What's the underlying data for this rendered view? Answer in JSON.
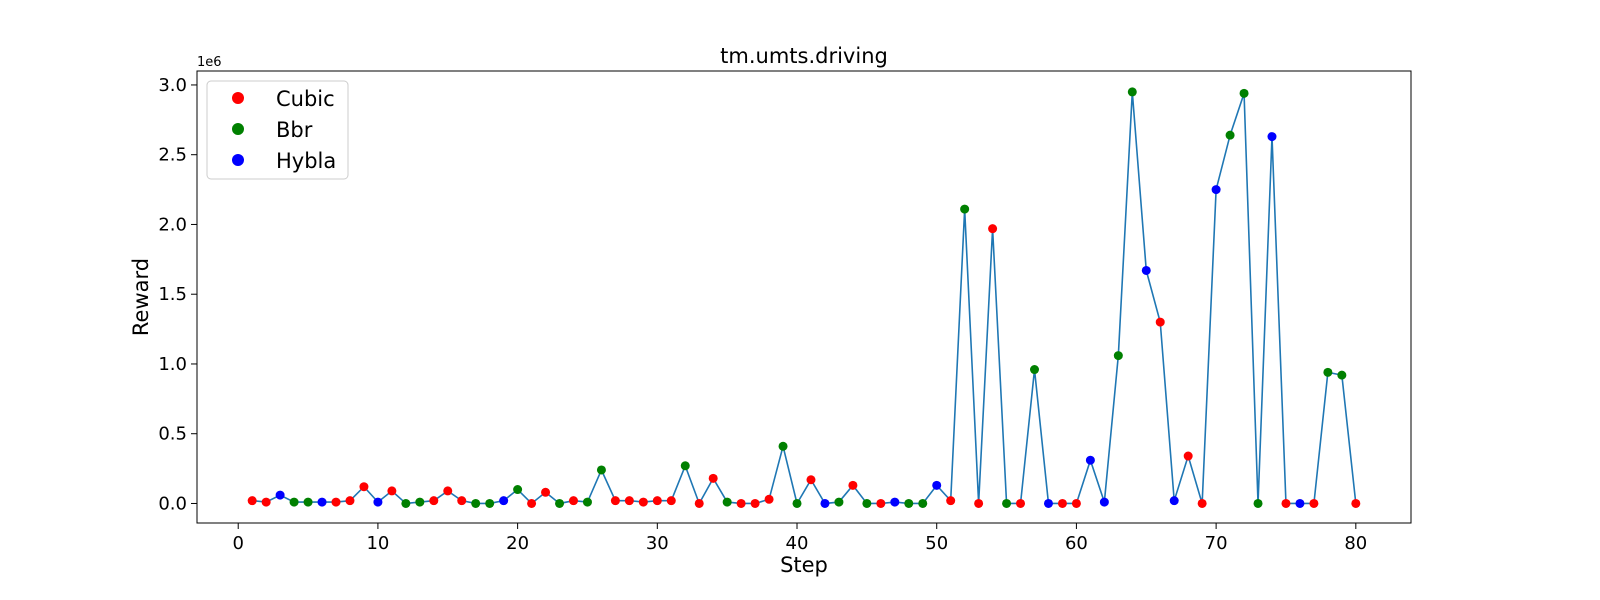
{
  "chart_data": {
    "type": "line",
    "title": "tm.umts.driving",
    "xlabel": "Step",
    "ylabel": "Reward",
    "y_offset_label": "1e6",
    "xlim": [
      -2.95,
      83.95
    ],
    "ylim": [
      -0.14,
      3.1
    ],
    "x_ticks": [
      0,
      10,
      20,
      30,
      40,
      50,
      60,
      70,
      80
    ],
    "y_ticks": [
      0.0,
      0.5,
      1.0,
      1.5,
      2.0,
      2.5,
      3.0
    ],
    "y_tick_labels": [
      "0.0",
      "0.5",
      "1.0",
      "1.5",
      "2.0",
      "2.5",
      "3.0"
    ],
    "y_unit_note": "values in units of 1e6",
    "line_color": "#1f77b4",
    "legend_location": "upper left",
    "legend": [
      {
        "name": "Cubic",
        "color": "#ff0000"
      },
      {
        "name": "Bbr",
        "color": "#008000"
      },
      {
        "name": "Hybla",
        "color": "#0000ff"
      }
    ],
    "points": [
      {
        "x": 1,
        "y": 0.02,
        "algo": "Cubic"
      },
      {
        "x": 2,
        "y": 0.01,
        "algo": "Cubic"
      },
      {
        "x": 3,
        "y": 0.06,
        "algo": "Hybla"
      },
      {
        "x": 4,
        "y": 0.01,
        "algo": "Bbr"
      },
      {
        "x": 5,
        "y": 0.01,
        "algo": "Bbr"
      },
      {
        "x": 6,
        "y": 0.01,
        "algo": "Hybla"
      },
      {
        "x": 7,
        "y": 0.01,
        "algo": "Cubic"
      },
      {
        "x": 8,
        "y": 0.02,
        "algo": "Cubic"
      },
      {
        "x": 9,
        "y": 0.12,
        "algo": "Cubic"
      },
      {
        "x": 10,
        "y": 0.01,
        "algo": "Hybla"
      },
      {
        "x": 11,
        "y": 0.09,
        "algo": "Cubic"
      },
      {
        "x": 12,
        "y": 0.0,
        "algo": "Bbr"
      },
      {
        "x": 13,
        "y": 0.01,
        "algo": "Bbr"
      },
      {
        "x": 14,
        "y": 0.02,
        "algo": "Cubic"
      },
      {
        "x": 15,
        "y": 0.09,
        "algo": "Cubic"
      },
      {
        "x": 16,
        "y": 0.02,
        "algo": "Cubic"
      },
      {
        "x": 17,
        "y": 0.0,
        "algo": "Bbr"
      },
      {
        "x": 18,
        "y": 0.0,
        "algo": "Bbr"
      },
      {
        "x": 19,
        "y": 0.02,
        "algo": "Hybla"
      },
      {
        "x": 20,
        "y": 0.1,
        "algo": "Bbr"
      },
      {
        "x": 21,
        "y": 0.0,
        "algo": "Cubic"
      },
      {
        "x": 22,
        "y": 0.08,
        "algo": "Cubic"
      },
      {
        "x": 23,
        "y": 0.0,
        "algo": "Bbr"
      },
      {
        "x": 24,
        "y": 0.02,
        "algo": "Cubic"
      },
      {
        "x": 25,
        "y": 0.01,
        "algo": "Bbr"
      },
      {
        "x": 26,
        "y": 0.24,
        "algo": "Bbr"
      },
      {
        "x": 27,
        "y": 0.02,
        "algo": "Cubic"
      },
      {
        "x": 28,
        "y": 0.02,
        "algo": "Cubic"
      },
      {
        "x": 29,
        "y": 0.01,
        "algo": "Cubic"
      },
      {
        "x": 30,
        "y": 0.02,
        "algo": "Cubic"
      },
      {
        "x": 31,
        "y": 0.02,
        "algo": "Cubic"
      },
      {
        "x": 32,
        "y": 0.27,
        "algo": "Bbr"
      },
      {
        "x": 33,
        "y": 0.0,
        "algo": "Cubic"
      },
      {
        "x": 34,
        "y": 0.18,
        "algo": "Cubic"
      },
      {
        "x": 35,
        "y": 0.01,
        "algo": "Bbr"
      },
      {
        "x": 36,
        "y": 0.0,
        "algo": "Cubic"
      },
      {
        "x": 37,
        "y": 0.0,
        "algo": "Cubic"
      },
      {
        "x": 38,
        "y": 0.03,
        "algo": "Cubic"
      },
      {
        "x": 39,
        "y": 0.41,
        "algo": "Bbr"
      },
      {
        "x": 40,
        "y": 0.0,
        "algo": "Bbr"
      },
      {
        "x": 41,
        "y": 0.17,
        "algo": "Cubic"
      },
      {
        "x": 42,
        "y": 0.0,
        "algo": "Hybla"
      },
      {
        "x": 43,
        "y": 0.01,
        "algo": "Bbr"
      },
      {
        "x": 44,
        "y": 0.13,
        "algo": "Cubic"
      },
      {
        "x": 45,
        "y": 0.0,
        "algo": "Bbr"
      },
      {
        "x": 46,
        "y": 0.0,
        "algo": "Cubic"
      },
      {
        "x": 47,
        "y": 0.01,
        "algo": "Hybla"
      },
      {
        "x": 48,
        "y": 0.0,
        "algo": "Bbr"
      },
      {
        "x": 49,
        "y": 0.0,
        "algo": "Bbr"
      },
      {
        "x": 50,
        "y": 0.13,
        "algo": "Hybla"
      },
      {
        "x": 51,
        "y": 0.02,
        "algo": "Cubic"
      },
      {
        "x": 52,
        "y": 2.11,
        "algo": "Bbr"
      },
      {
        "x": 53,
        "y": 0.0,
        "algo": "Cubic"
      },
      {
        "x": 54,
        "y": 1.97,
        "algo": "Cubic"
      },
      {
        "x": 55,
        "y": 0.0,
        "algo": "Bbr"
      },
      {
        "x": 56,
        "y": 0.0,
        "algo": "Cubic"
      },
      {
        "x": 57,
        "y": 0.96,
        "algo": "Bbr"
      },
      {
        "x": 58,
        "y": 0.0,
        "algo": "Hybla"
      },
      {
        "x": 59,
        "y": 0.0,
        "algo": "Cubic"
      },
      {
        "x": 60,
        "y": 0.0,
        "algo": "Cubic"
      },
      {
        "x": 61,
        "y": 0.31,
        "algo": "Hybla"
      },
      {
        "x": 62,
        "y": 0.01,
        "algo": "Hybla"
      },
      {
        "x": 63,
        "y": 1.06,
        "algo": "Bbr"
      },
      {
        "x": 64,
        "y": 2.95,
        "algo": "Bbr"
      },
      {
        "x": 65,
        "y": 1.67,
        "algo": "Hybla"
      },
      {
        "x": 66,
        "y": 1.3,
        "algo": "Cubic"
      },
      {
        "x": 67,
        "y": 0.02,
        "algo": "Hybla"
      },
      {
        "x": 68,
        "y": 0.34,
        "algo": "Cubic"
      },
      {
        "x": 69,
        "y": 0.0,
        "algo": "Cubic"
      },
      {
        "x": 70,
        "y": 2.25,
        "algo": "Hybla"
      },
      {
        "x": 71,
        "y": 2.64,
        "algo": "Bbr"
      },
      {
        "x": 72,
        "y": 2.94,
        "algo": "Bbr"
      },
      {
        "x": 73,
        "y": 0.0,
        "algo": "Bbr"
      },
      {
        "x": 74,
        "y": 2.63,
        "algo": "Hybla"
      },
      {
        "x": 75,
        "y": 0.0,
        "algo": "Cubic"
      },
      {
        "x": 76,
        "y": 0.0,
        "algo": "Hybla"
      },
      {
        "x": 77,
        "y": 0.0,
        "algo": "Cubic"
      },
      {
        "x": 78,
        "y": 0.94,
        "algo": "Bbr"
      },
      {
        "x": 79,
        "y": 0.92,
        "algo": "Bbr"
      },
      {
        "x": 80,
        "y": 0.0,
        "algo": "Cubic"
      }
    ]
  }
}
